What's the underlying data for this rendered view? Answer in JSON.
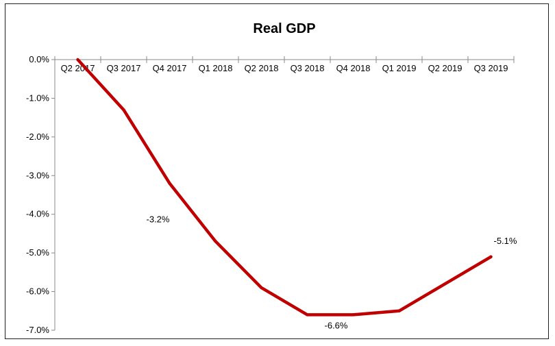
{
  "chart_data": {
    "type": "line",
    "title": "Real GDP",
    "xlabel": "",
    "ylabel": "",
    "categories": [
      "Q2 2017",
      "Q3 2017",
      "Q4 2017",
      "Q1 2018",
      "Q2 2018",
      "Q3 2018",
      "Q4 2018",
      "Q1 2019",
      "Q2 2019",
      "Q3 2019"
    ],
    "series": [
      {
        "values": [
          0.0,
          -1.3,
          -3.2,
          -4.7,
          -5.9,
          -6.6,
          -6.6,
          -6.5,
          -5.8,
          -5.1
        ],
        "color": "#c00000"
      }
    ],
    "yticks": [
      "0.0%",
      "-1.0%",
      "-2.0%",
      "-3.0%",
      "-4.0%",
      "-5.0%",
      "-6.0%",
      "-7.0%"
    ],
    "ytick_values": [
      0,
      -1,
      -2,
      -3,
      -4,
      -5,
      -6,
      -7
    ],
    "ylim": [
      -7,
      0
    ],
    "data_labels": [
      {
        "index": 2,
        "text": "-3.2%"
      },
      {
        "index": 5,
        "text": "-6.6%"
      },
      {
        "index": 9,
        "text": "-5.1%"
      }
    ],
    "grid": false,
    "legend": "none",
    "x_axis_position": "top (at 0%)"
  }
}
